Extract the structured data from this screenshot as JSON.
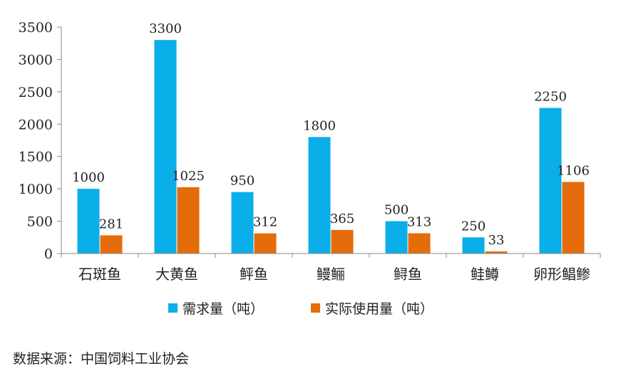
{
  "chart_data": {
    "type": "bar",
    "categories": [
      "石斑鱼",
      "大黄鱼",
      "鲆鱼",
      "鳗鲡",
      "鲟鱼",
      "鲑鳟",
      "卵形鲳鲹"
    ],
    "series": [
      {
        "name": "需求量（吨）",
        "values": [
          1000,
          3300,
          950,
          1800,
          500,
          250,
          2250
        ],
        "color": "#0aaee8"
      },
      {
        "name": "实际使用量（吨）",
        "values": [
          281,
          1025,
          312,
          365,
          313,
          33,
          1106
        ],
        "color": "#e46c0a"
      }
    ],
    "ylim": [
      0,
      3500
    ],
    "yticks": [
      0,
      500,
      1000,
      1500,
      2000,
      2500,
      3000,
      3500
    ],
    "grid": false,
    "legend_position": "bottom",
    "source": "数据来源：中国饲料工业协会"
  }
}
